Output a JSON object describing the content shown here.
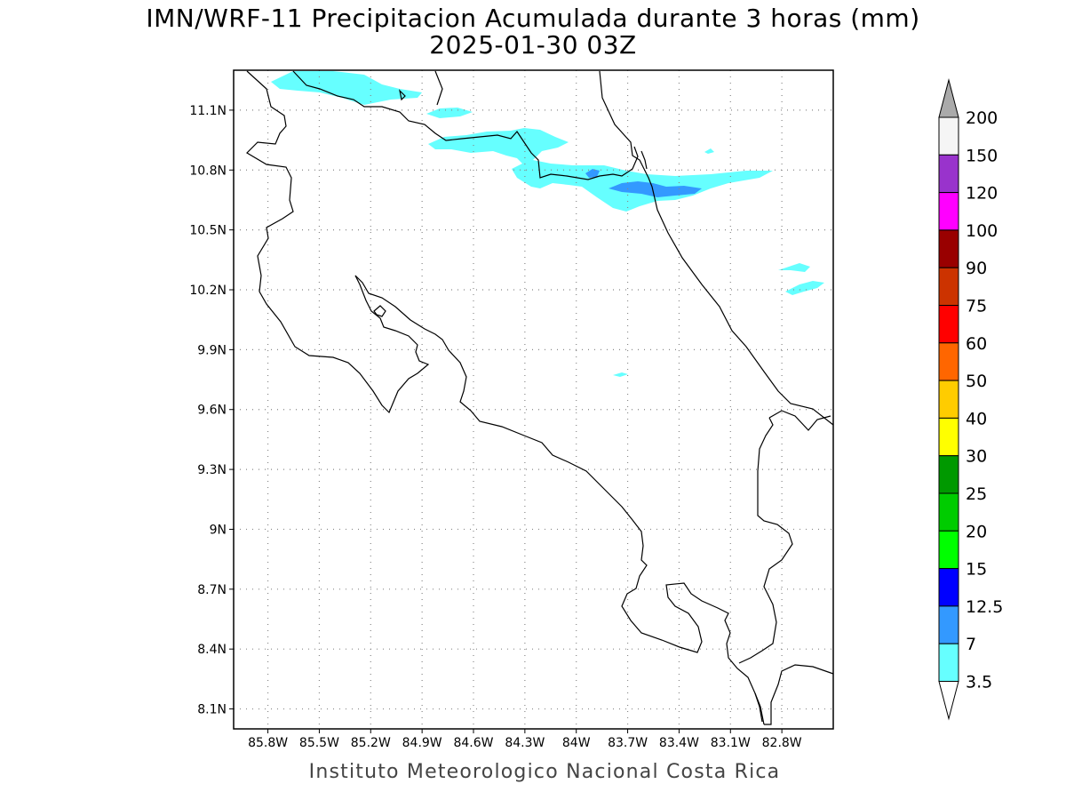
{
  "title": "IMN/WRF-11 Precipitacion Acumulada durante 3 horas (mm)",
  "subtitle": "2025-01-30 03Z",
  "credit": "Instituto Meteorologico Nacional Costa Rica",
  "map": {
    "lon_range": [
      -86.0,
      -82.5
    ],
    "lat_range": [
      8.0,
      11.3
    ],
    "x_ticks": [
      "85.8W",
      "85.5W",
      "85.2W",
      "84.9W",
      "84.6W",
      "84.3W",
      "84W",
      "83.7W",
      "83.4W",
      "83.1W",
      "82.8W"
    ],
    "x_tick_values": [
      -85.8,
      -85.5,
      -85.2,
      -84.9,
      -84.6,
      -84.3,
      -84.0,
      -83.7,
      -83.4,
      -83.1,
      -82.8
    ],
    "y_ticks": [
      "11.1N",
      "10.8N",
      "10.5N",
      "10.2N",
      "9.9N",
      "9.6N",
      "9.3N",
      "9N",
      "8.7N",
      "8.4N",
      "8.1N"
    ],
    "y_tick_values": [
      11.1,
      10.8,
      10.5,
      10.2,
      9.9,
      9.6,
      9.3,
      9.0,
      8.7,
      8.4,
      8.1
    ],
    "grid": "dotted",
    "coastline_color": "#000000"
  },
  "legend": {
    "units": "mm",
    "labels": [
      "3.5",
      "7",
      "12.5",
      "15",
      "20",
      "25",
      "30",
      "40",
      "50",
      "60",
      "75",
      "90",
      "100",
      "120",
      "150",
      "200"
    ],
    "colors": [
      "#66ffff",
      "#3399ff",
      "#0000ff",
      "#00ff00",
      "#00cc00",
      "#009900",
      "#ffff00",
      "#ffcc00",
      "#ff6600",
      "#ff0000",
      "#cc3300",
      "#990000",
      "#ff00ff",
      "#9933cc",
      "#f5f5f5"
    ],
    "over_color": "#aaaaaa",
    "under_color": "#ffffff"
  },
  "precip_colors": {
    "light": "#66ffff",
    "moderate": "#3399ff"
  }
}
